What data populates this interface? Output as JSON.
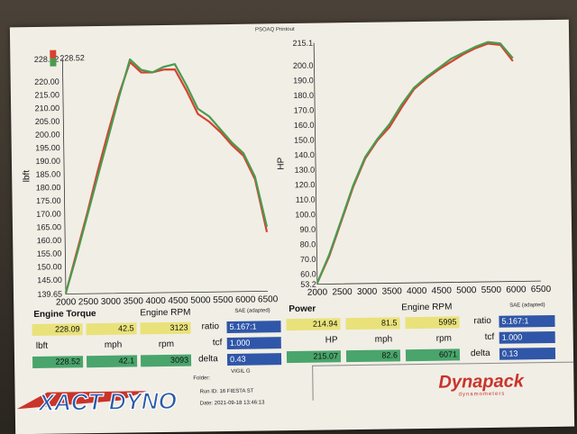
{
  "chart_data": [
    {
      "type": "line",
      "ylabel": "lbft",
      "xlim": [
        2000,
        6500
      ],
      "ylim": [
        139.65,
        228.52
      ],
      "x_ticks": [
        "2000",
        "2500",
        "3000",
        "3500",
        "4000",
        "4500",
        "5000",
        "5500",
        "6000",
        "6500"
      ],
      "y_ticks": [
        "139.65",
        "145.00",
        "150.00",
        "155.00",
        "160.00",
        "165.00",
        "170.00",
        "175.00",
        "180.00",
        "185.00",
        "190.00",
        "195.00",
        "200.00",
        "205.00",
        "210.00",
        "215.00",
        "220.00",
        "228.52"
      ],
      "series": [
        {
          "color": "#d8412f",
          "x": [
            2000,
            2250,
            2500,
            2750,
            3000,
            3250,
            3500,
            3750,
            4000,
            4250,
            4500,
            4750,
            5000,
            5250,
            5500,
            5750,
            6000,
            6250,
            6500
          ],
          "y": [
            140,
            155,
            170,
            186,
            201,
            215,
            227,
            223,
            223,
            224,
            224,
            216,
            207,
            204,
            200,
            195,
            191,
            182,
            162
          ]
        },
        {
          "color": "#4a9b4f",
          "x": [
            2000,
            2250,
            2500,
            2750,
            3000,
            3250,
            3500,
            3750,
            4000,
            4250,
            4500,
            4750,
            5000,
            5250,
            5500,
            5750,
            6000,
            6250,
            6500
          ],
          "y": [
            140,
            154,
            169,
            184,
            199,
            214,
            228,
            224,
            223,
            225,
            226,
            218,
            209,
            206,
            201,
            196,
            192,
            183,
            164
          ]
        }
      ]
    },
    {
      "type": "line",
      "ylabel": "HP",
      "xlim": [
        2000,
        6500
      ],
      "ylim": [
        53.2,
        215.1
      ],
      "x_ticks": [
        "2000",
        "2500",
        "3000",
        "3500",
        "4000",
        "4500",
        "5000",
        "5500",
        "6000",
        "6500"
      ],
      "y_ticks": [
        "53.2",
        "60.0",
        "70.0",
        "80.0",
        "90.0",
        "100.0",
        "110.0",
        "120.0",
        "130.0",
        "140.0",
        "150.0",
        "160.0",
        "170.0",
        "180.0",
        "190.0",
        "200.0",
        "215.1"
      ],
      "series": [
        {
          "color": "#d8412f",
          "x": [
            2000,
            2250,
            2500,
            2750,
            3000,
            3250,
            3500,
            3750,
            4000,
            4250,
            4500,
            4750,
            5000,
            5250,
            5500,
            5750,
            6000
          ],
          "y": [
            54,
            72,
            95,
            118,
            137,
            149,
            158,
            171,
            183,
            190,
            196,
            201,
            206,
            210,
            213,
            212,
            201
          ]
        },
        {
          "color": "#4a9b4f",
          "x": [
            2000,
            2250,
            2500,
            2750,
            3000,
            3250,
            3500,
            3750,
            4000,
            4250,
            4500,
            4750,
            5000,
            5250,
            5500,
            5750,
            6000
          ],
          "y": [
            54,
            73,
            96,
            119,
            138,
            150,
            160,
            173,
            184,
            191,
            197,
            203,
            207,
            211,
            214,
            213,
            203
          ]
        }
      ]
    }
  ],
  "header": {
    "printout": "PSOAQ Printout",
    "legend_top": "228.52"
  },
  "x_axis_labels": {
    "left": "Engine RPM",
    "right": "Engine RPM"
  },
  "left_panel": {
    "title": "Engine Torque",
    "row1": [
      "228.09",
      "42.5",
      "3123"
    ],
    "units": [
      "lbft",
      "mph",
      "rpm"
    ],
    "row2": [
      "228.52",
      "42.1",
      "3093"
    ]
  },
  "right_panel": {
    "title": "Power",
    "row1": [
      "214.94",
      "81.5",
      "5995"
    ],
    "units": [
      "HP",
      "mph",
      "rpm"
    ],
    "row2": [
      "215.07",
      "82.6",
      "6071"
    ]
  },
  "ratio_boxes": [
    {
      "ratio": "5.167:1",
      "tcf": "1.000",
      "delta": "0.43",
      "sae": "SAE (adapted)"
    },
    {
      "ratio": "5.167:1",
      "tcf": "1.000",
      "delta": "0.13",
      "sae": "SAE (adapted)"
    }
  ],
  "labels": {
    "ratio": "ratio",
    "tcf": "tcf",
    "delta": "delta"
  },
  "run_info": {
    "folder_label": "Folder:",
    "folder": "VIGIL G",
    "run": "Run ID: 16 FIESTA ST",
    "date": "Date: 2021-09-18 13:46:13"
  },
  "logos": {
    "left": "XACT DYNO",
    "right": "Dynapack",
    "right_sub": "dynamometers"
  }
}
